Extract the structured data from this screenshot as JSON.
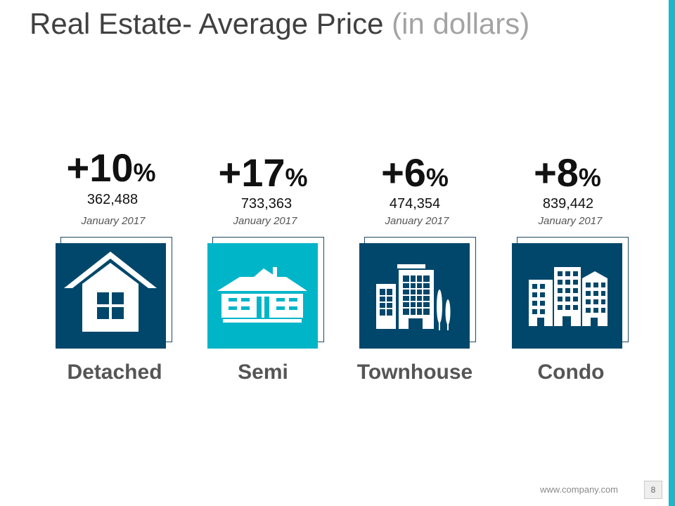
{
  "title": {
    "main": "Real Estate- Average Price",
    "sub": "(in dollars)"
  },
  "colors": {
    "dark_tile": "#00476b",
    "accent": "#1bb8c9",
    "accent_tile": "#00b5c8"
  },
  "cards": [
    {
      "percent": "+10",
      "symbol": "%",
      "price": "362,488",
      "date": "January 2017",
      "label": "Detached",
      "icon": "house-icon"
    },
    {
      "percent": "+17",
      "symbol": "%",
      "price": "733,363",
      "date": "January 2017",
      "label": "Semi",
      "icon": "semi-house-icon"
    },
    {
      "percent": "+6",
      "symbol": "%",
      "price": "474,354",
      "date": "January 2017",
      "label": "Townhouse",
      "icon": "townhouse-icon"
    },
    {
      "percent": "+8",
      "symbol": "%",
      "price": "839,442",
      "date": "January 2017",
      "label": "Condo",
      "icon": "condo-icon"
    }
  ],
  "footer": {
    "url": "www.company.com",
    "page": "8"
  }
}
